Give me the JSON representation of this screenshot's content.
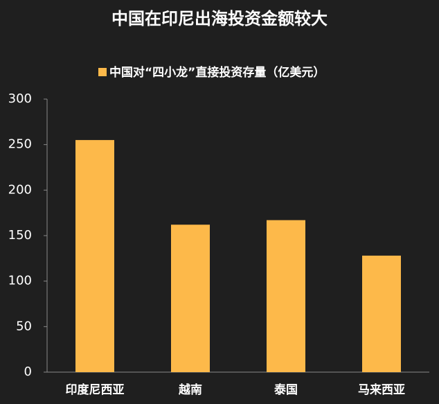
{
  "chart_data": {
    "type": "bar",
    "title": "中国在印尼出海投资金额较大",
    "categories": [
      "印度尼西亚",
      "越南",
      "泰国",
      "马来西亚"
    ],
    "series": [
      {
        "name": "中国对“四小龙”直接投资存量（亿美元）",
        "color": "#fdb94a",
        "values": [
          255,
          162,
          167,
          128
        ]
      }
    ],
    "ylim": [
      0,
      300
    ],
    "yticks": [
      0,
      50,
      100,
      150,
      200,
      250,
      300
    ],
    "grid": false,
    "legend": "top"
  }
}
